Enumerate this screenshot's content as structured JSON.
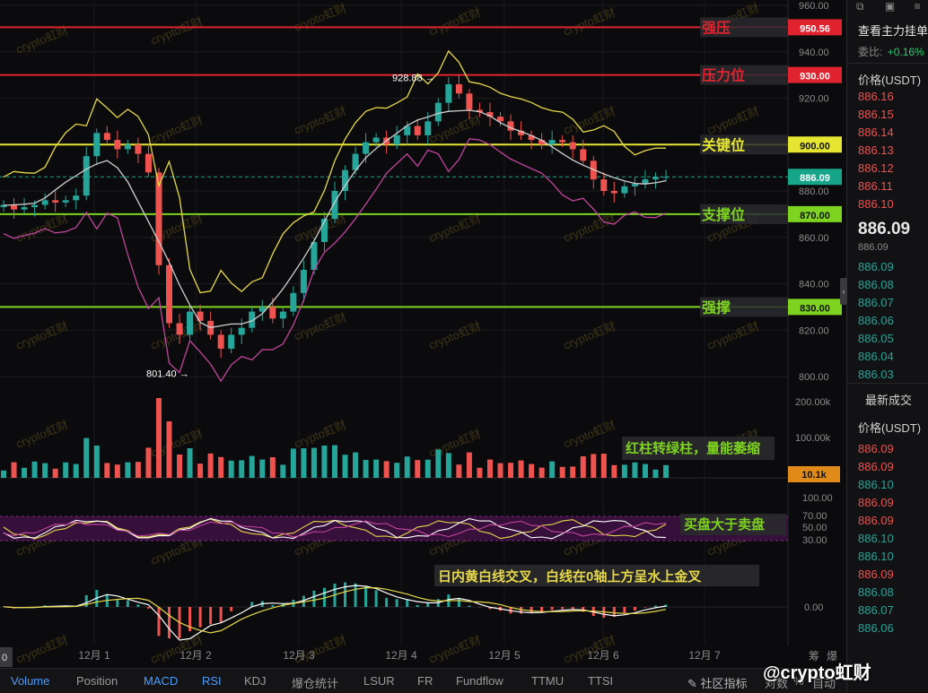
{
  "chart_data": {
    "type": "line",
    "subtype": "candlestick",
    "price_axis_ticks": [
      "960.00",
      "940.00",
      "920.00",
      "900.00",
      "880.00",
      "860.00",
      "840.00",
      "820.00",
      "800.00"
    ],
    "x_ticks": [
      "12月 1",
      "12月 2",
      "12月 3",
      "12月 4",
      "12月 5",
      "12月 6",
      "12月 7"
    ],
    "levels": [
      {
        "label": "强压",
        "value": 950.56,
        "badge": "950.56",
        "color": "#e0232f"
      },
      {
        "label": "压力位",
        "value": 930.0,
        "badge": "930.00",
        "color": "#e0232f"
      },
      {
        "label": "关键位",
        "value": 900.0,
        "badge": "900.00",
        "color": "#e6e632"
      },
      {
        "label": "支撑位",
        "value": 870.0,
        "badge": "870.00",
        "color": "#7ed321"
      },
      {
        "label": "强撑",
        "value": 830.0,
        "badge": "830.00",
        "color": "#7ed321"
      }
    ],
    "current_price": {
      "value": 886.09,
      "badge": "886.09",
      "color": "#17a589"
    },
    "high_marker": {
      "label": "928.88 →",
      "value": 928.88
    },
    "low_marker": {
      "label": "801.40 →",
      "value": 801.4
    },
    "closes": [
      874,
      872,
      873,
      874,
      876,
      875,
      876,
      878,
      895,
      905,
      902,
      898,
      900,
      896,
      888,
      848,
      823,
      818,
      828,
      824,
      818,
      812,
      818,
      821,
      828,
      830,
      825,
      828,
      836,
      846,
      858,
      868,
      880,
      889,
      896,
      901,
      903,
      900,
      904,
      908,
      904,
      910,
      918,
      926,
      922,
      915,
      914,
      912,
      910,
      906,
      904,
      902,
      900,
      902,
      901,
      898,
      893,
      885,
      880,
      879,
      882,
      883,
      885,
      886,
      886.09
    ],
    "volume_panel": {
      "ticks": [
        "200.00k",
        "100.00k"
      ],
      "current": "10.1k",
      "annotation": "红柱转绿柱，量能萎缩"
    },
    "rsi_panel": {
      "ticks": [
        "100.00",
        "70.00",
        "50.00",
        "30.00"
      ],
      "annotation": "买盘大于卖盘"
    },
    "macd_panel": {
      "ticks": [
        "0.00"
      ],
      "annotation": "日内黄白线交叉，白线在0轴上方呈水上金叉"
    }
  },
  "watermark": "crypto虹财",
  "right_panel": {
    "title": "查看主力挂单",
    "ratio_label": "委比:",
    "ratio_value": "+0.16%",
    "price_header": "价格(USDT)",
    "asks": [
      "886.16",
      "886.15",
      "886.14",
      "886.13",
      "886.12",
      "886.11",
      "886.10"
    ],
    "mid_price": "886.09",
    "mid_sub": "886.09",
    "bids": [
      "886.09",
      "886.08",
      "886.07",
      "886.06",
      "886.05",
      "886.04",
      "886.03"
    ],
    "trades_title": "最新成交",
    "trades_header": "价格(USDT)",
    "trades": [
      "886.09",
      "886.09",
      "886.10",
      "886.09",
      "886.09",
      "886.10",
      "886.10",
      "886.09",
      "886.08",
      "886.07",
      "886.06"
    ]
  },
  "bottom_tabs": [
    "Volume",
    "Position",
    "MACD",
    "RSI",
    "KDJ",
    "爆仓统计",
    "LSUR",
    "FR",
    "Fundflow",
    "TTMU",
    "TTSI"
  ],
  "bottom_right": {
    "indicator": "社区指标",
    "compare": "对数",
    "auto": "自动"
  },
  "brand_logo": "@crypto虹财",
  "left_corner": "0",
  "right_corner_labels": [
    "筹",
    "爆"
  ]
}
